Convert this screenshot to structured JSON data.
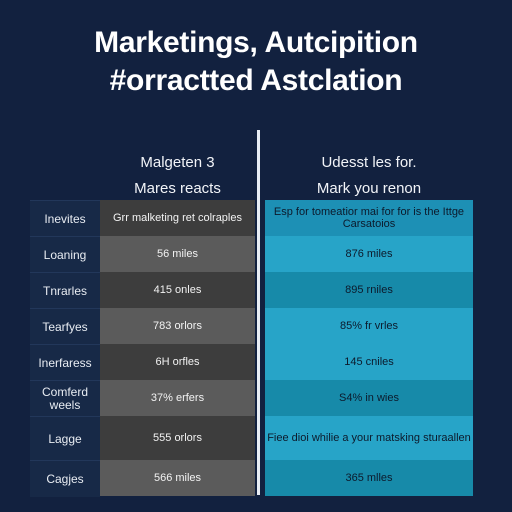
{
  "title": {
    "line1": "Marketings, Autcipition",
    "line2": "#orractted Astclation"
  },
  "left_column": {
    "header_line1": "Malgeten 3",
    "header_line2": "Mares reacts"
  },
  "right_column": {
    "header_line1": "Udesst les for.",
    "header_line2": "Mark you renon"
  },
  "rows": [
    {
      "label": "Inevites",
      "left": "Grr malketing ret colraples",
      "right": "Esp for tomeatior mai for for is the Ittge Carsatoios"
    },
    {
      "label": "Loaning",
      "left": "56 miles",
      "right": "876 miles"
    },
    {
      "label": "Tnrarles",
      "left": "415 onles",
      "right": "895 rniles"
    },
    {
      "label": "Tearfyes",
      "left": "783 orlors",
      "right": "85% fr vrles"
    },
    {
      "label": "Inerfaress",
      "left": "6H orfles",
      "right": "145 cniles"
    },
    {
      "label": "Comferd weels",
      "left": "37% erfers",
      "right": "S4% in wies"
    },
    {
      "label": "Lagge",
      "left": "555 orlors",
      "right": "Fiee dioi whilie a your matsking sturaallen"
    },
    {
      "label": "Cagjes",
      "left": "566 miles",
      "right": "365 mlles"
    }
  ]
}
